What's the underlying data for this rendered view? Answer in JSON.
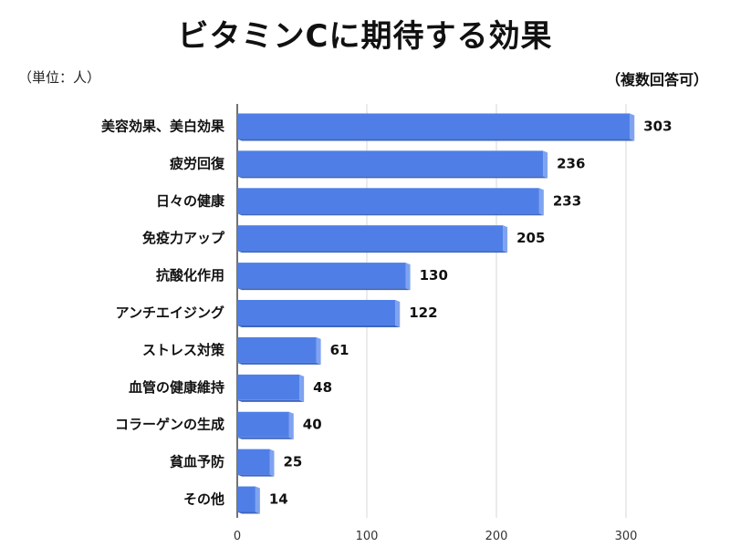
{
  "chart_data": {
    "type": "bar",
    "orientation": "horizontal",
    "title": "ビタミンCに期待する効果",
    "unit_note": "（単位：人）",
    "note": "（複数回答可）",
    "categories": [
      "美容効果、美白効果",
      "疲労回復",
      "日々の健康",
      "免疫力アップ",
      "抗酸化作用",
      "アンチエイジング",
      "ストレス対策",
      "血管の健康維持",
      "コラーゲンの生成",
      "貧血予防",
      "その他"
    ],
    "values": [
      303,
      236,
      233,
      205,
      130,
      122,
      61,
      48,
      40,
      25,
      14
    ],
    "value_labels": [
      "303",
      "236",
      "233",
      "205",
      "130",
      "122",
      "61",
      "48",
      "40",
      "25",
      "14"
    ],
    "xlim": [
      0,
      300
    ],
    "xticks": [
      0,
      100,
      200,
      300
    ],
    "xtick_labels": [
      "0",
      "100",
      "200",
      "300"
    ],
    "grid": "vertical",
    "colors": {
      "bar": "#4f7fe6",
      "bar_top": "#7fa3f0",
      "bar_side": "#3f66bf",
      "grid": "#d7d7d7",
      "axis": "#444444"
    }
  }
}
